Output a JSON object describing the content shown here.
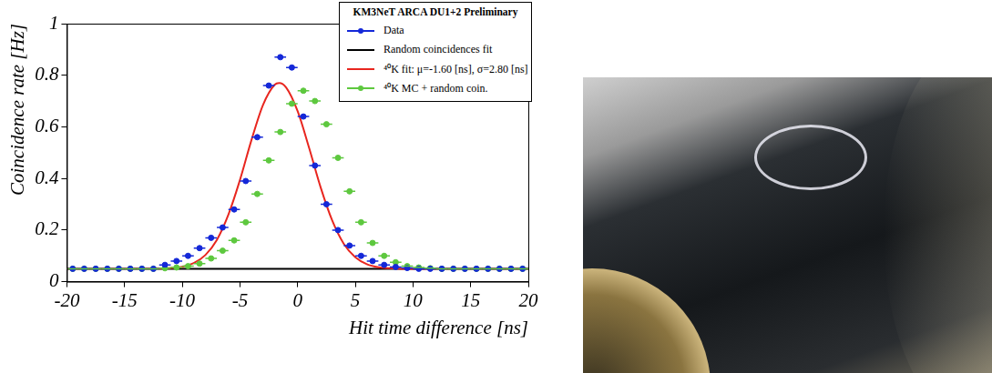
{
  "chart_data": {
    "type": "scatter",
    "title": "KM3NeT ARCA DU1+2 Preliminary",
    "x_label": "Hit time difference [ns]",
    "y_label": "Coincidence rate [Hz]",
    "xlim": [
      -20,
      20
    ],
    "xticks": [
      -20,
      -15,
      -10,
      -5,
      0,
      5,
      10,
      15,
      20
    ],
    "ylim": [
      0,
      1
    ],
    "yticks": [
      0,
      0.2,
      0.4,
      0.6,
      0.8,
      1
    ],
    "grid": false,
    "legend": "top right",
    "series": [
      {
        "name": "Data",
        "type": "scatter",
        "color": "#1428d8",
        "marker": "circle",
        "line_style": "none",
        "x_error": 0.5,
        "x": [
          -19.5,
          -18.5,
          -17.5,
          -16.5,
          -15.5,
          -14.5,
          -13.5,
          -12.5,
          -11.5,
          -10.5,
          -9.5,
          -8.5,
          -7.5,
          -6.5,
          -5.5,
          -4.5,
          -3.5,
          -2.5,
          -1.5,
          -0.5,
          0.5,
          1.5,
          2.5,
          3.5,
          4.5,
          5.5,
          6.5,
          7.5,
          8.5,
          9.5,
          10.5,
          11.5,
          12.5,
          13.5,
          14.5,
          15.5,
          16.5,
          17.5,
          18.5,
          19.5
        ],
        "values": [
          0.05,
          0.05,
          0.05,
          0.05,
          0.05,
          0.05,
          0.05,
          0.05,
          0.065,
          0.08,
          0.1,
          0.13,
          0.17,
          0.21,
          0.28,
          0.39,
          0.56,
          0.76,
          0.87,
          0.83,
          0.64,
          0.45,
          0.3,
          0.2,
          0.14,
          0.1,
          0.08,
          0.065,
          0.057,
          0.053,
          0.05,
          0.05,
          0.05,
          0.05,
          0.05,
          0.05,
          0.05,
          0.05,
          0.05,
          0.05
        ]
      },
      {
        "name": "Random coincidences fit",
        "type": "line",
        "color": "#000000",
        "marker": "none",
        "line_style": "solid",
        "x": [
          -20,
          20
        ],
        "values": [
          0.05,
          0.05
        ]
      },
      {
        "name": "⁴⁰K fit: μ=-1.60 [ns], σ=2.80 [ns]",
        "type": "line",
        "color": "#e8261f",
        "marker": "none",
        "line_style": "solid",
        "x": [
          -20,
          -12,
          -11,
          -10,
          -9,
          -8,
          -7,
          -6,
          -5,
          -4,
          -3,
          -2,
          -1.6,
          -1,
          0,
          1,
          2,
          3,
          4,
          5,
          6,
          7,
          8,
          9,
          20
        ],
        "values": [
          0.05,
          0.051,
          0.053,
          0.058,
          0.072,
          0.103,
          0.162,
          0.26,
          0.394,
          0.549,
          0.685,
          0.763,
          0.77,
          0.753,
          0.661,
          0.518,
          0.365,
          0.237,
          0.147,
          0.095,
          0.068,
          0.056,
          0.052,
          0.05,
          0.05
        ]
      },
      {
        "name": "⁴⁰K MC + random coin.",
        "type": "scatter",
        "color": "#5ec83f",
        "marker": "circle",
        "line_style": "none",
        "x_error": 0.5,
        "x": [
          -19.5,
          -18.5,
          -17.5,
          -16.5,
          -15.5,
          -14.5,
          -13.5,
          -12.5,
          -11.5,
          -10.5,
          -9.5,
          -8.5,
          -7.5,
          -6.5,
          -5.5,
          -4.5,
          -3.5,
          -2.5,
          -1.5,
          -0.5,
          0.5,
          1.5,
          2.5,
          3.5,
          4.5,
          5.5,
          6.5,
          7.5,
          8.5,
          9.5,
          10.5,
          11.5,
          12.5,
          13.5,
          14.5,
          15.5,
          16.5,
          17.5,
          18.5,
          19.5
        ],
        "values": [
          0.05,
          0.05,
          0.05,
          0.05,
          0.05,
          0.05,
          0.05,
          0.05,
          0.052,
          0.055,
          0.06,
          0.07,
          0.09,
          0.12,
          0.16,
          0.23,
          0.34,
          0.47,
          0.58,
          0.69,
          0.74,
          0.7,
          0.61,
          0.48,
          0.35,
          0.23,
          0.15,
          0.1,
          0.075,
          0.06,
          0.055,
          0.052,
          0.05,
          0.05,
          0.05,
          0.05,
          0.05,
          0.05,
          0.05,
          0.05
        ]
      }
    ]
  }
}
